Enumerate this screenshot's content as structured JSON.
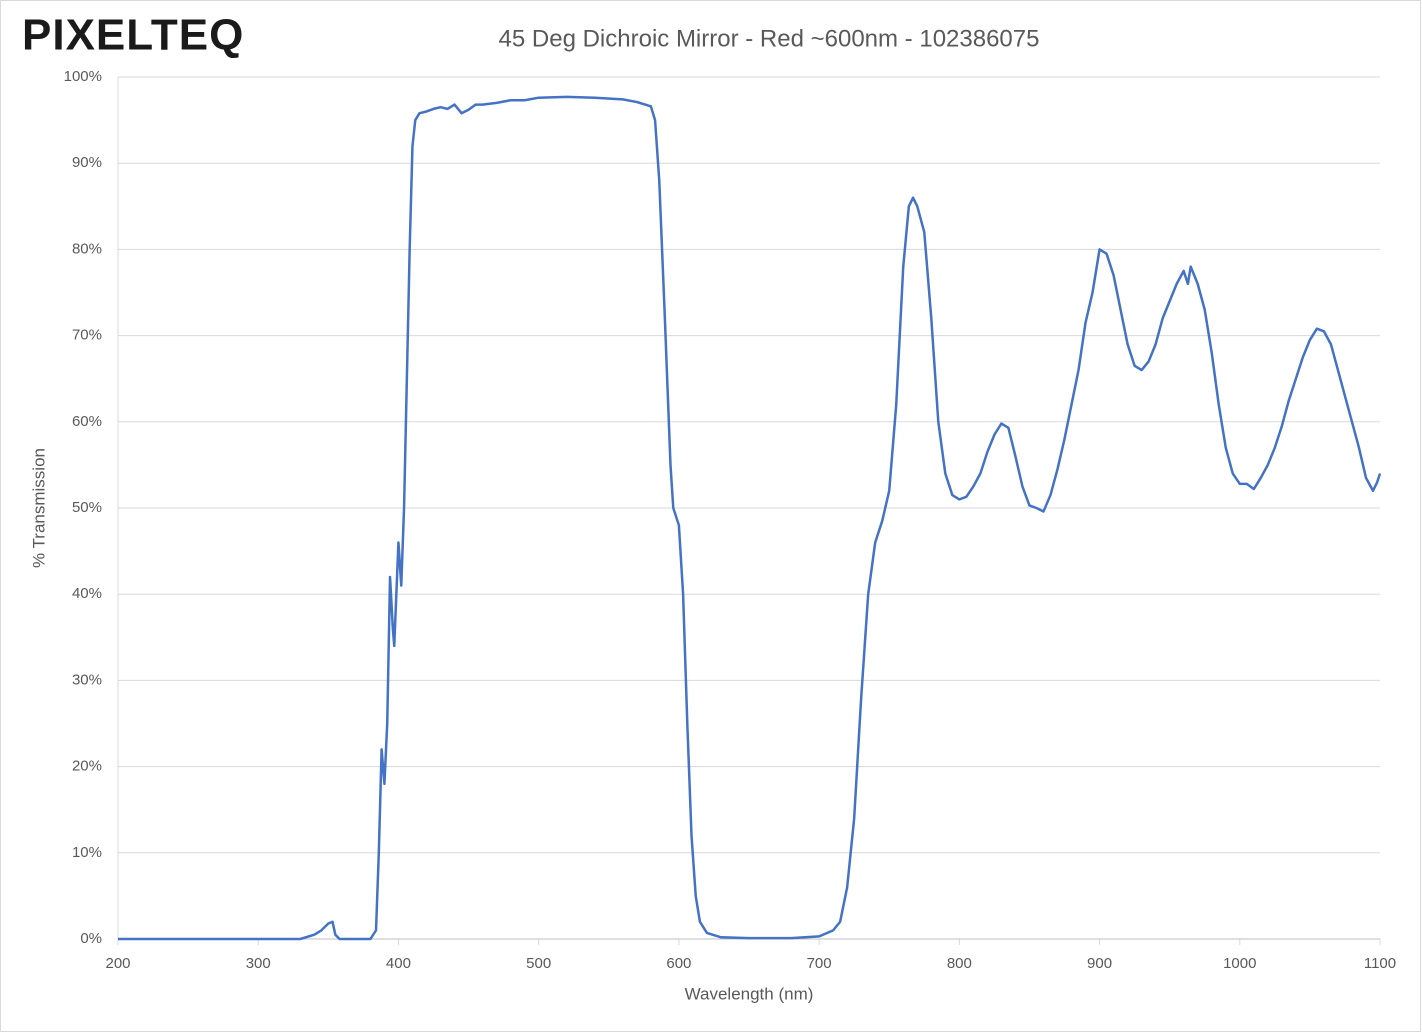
{
  "chart_data": {
    "type": "line",
    "logo": "PIXELTEQ",
    "title": "45 Deg Dichroic Mirror - Red ~600nm - 102386075",
    "x_label": "Wavelength (nm)",
    "y_label": "% Transmission",
    "color": "#4472c4",
    "grid": true,
    "xlim": [
      200,
      1100
    ],
    "xticks": [
      200,
      300,
      400,
      500,
      600,
      700,
      800,
      900,
      1000,
      1100
    ],
    "ylim": [
      0,
      100
    ],
    "yticks": [
      {
        "value": 0,
        "label": "0%"
      },
      {
        "value": 10,
        "label": "10%"
      },
      {
        "value": 20,
        "label": "20%"
      },
      {
        "value": 30,
        "label": "30%"
      },
      {
        "value": 40,
        "label": "40%"
      },
      {
        "value": 50,
        "label": "50%"
      },
      {
        "value": 60,
        "label": "60%"
      },
      {
        "value": 70,
        "label": "70%"
      },
      {
        "value": 80,
        "label": "80%"
      },
      {
        "value": 90,
        "label": "90%"
      },
      {
        "value": 100,
        "label": "100%"
      }
    ],
    "x": [
      200,
      330,
      340,
      345,
      350,
      353,
      355,
      358,
      380,
      384,
      386,
      388,
      390,
      392,
      394,
      396,
      397,
      399,
      400,
      402,
      404,
      406,
      408,
      410,
      412,
      415,
      420,
      425,
      430,
      435,
      440,
      445,
      450,
      455,
      460,
      470,
      480,
      490,
      500,
      520,
      540,
      560,
      570,
      580,
      583,
      586,
      590,
      594,
      596,
      600,
      603,
      606,
      609,
      612,
      615,
      620,
      630,
      650,
      680,
      700,
      710,
      715,
      720,
      725,
      730,
      735,
      740,
      745,
      750,
      755,
      760,
      764,
      767,
      770,
      775,
      780,
      785,
      790,
      795,
      800,
      805,
      810,
      815,
      820,
      825,
      830,
      835,
      840,
      845,
      850,
      855,
      860,
      865,
      870,
      875,
      880,
      885,
      890,
      895,
      900,
      905,
      910,
      915,
      920,
      925,
      930,
      935,
      940,
      945,
      950,
      955,
      960,
      963,
      965,
      970,
      975,
      980,
      985,
      990,
      995,
      1000,
      1005,
      1010,
      1015,
      1020,
      1025,
      1030,
      1035,
      1040,
      1045,
      1050,
      1055,
      1060,
      1065,
      1070,
      1075,
      1080,
      1085,
      1090,
      1095,
      1098,
      1100
    ],
    "values": [
      0,
      0,
      0.5,
      1,
      1.8,
      2,
      0.5,
      0,
      0,
      1,
      10,
      22,
      18,
      25,
      42,
      36,
      34,
      42,
      46,
      41,
      50,
      65,
      80,
      92,
      95,
      95.8,
      96,
      96.3,
      96.5,
      96.3,
      96.8,
      95.8,
      96.2,
      96.8,
      96.8,
      97,
      97.3,
      97.3,
      97.6,
      97.7,
      97.6,
      97.4,
      97.1,
      96.6,
      95,
      88,
      72,
      55,
      50,
      48,
      40,
      25,
      12,
      5,
      2,
      0.7,
      0.2,
      0.1,
      0.1,
      0.3,
      1,
      2,
      6,
      14,
      28,
      40,
      46,
      48.5,
      52,
      62,
      78,
      85,
      86,
      85,
      82,
      72,
      60,
      54,
      51.5,
      51,
      51.3,
      52.5,
      54,
      56.5,
      58.5,
      59.8,
      59.3,
      56,
      52.5,
      50.3,
      50,
      49.6,
      51.5,
      54.5,
      58,
      62,
      66,
      71.5,
      75,
      80,
      79.5,
      77,
      73,
      69,
      66.5,
      66,
      67,
      69,
      72,
      74,
      76,
      77.5,
      76,
      78,
      76,
      73,
      68,
      62,
      57,
      54,
      52.8,
      52.8,
      52.2,
      53.5,
      55,
      57,
      59.5,
      62.5,
      65,
      67.5,
      69.5,
      70.8,
      70.5,
      69,
      66,
      63,
      60,
      57,
      53.5,
      52,
      53,
      54
    ]
  }
}
